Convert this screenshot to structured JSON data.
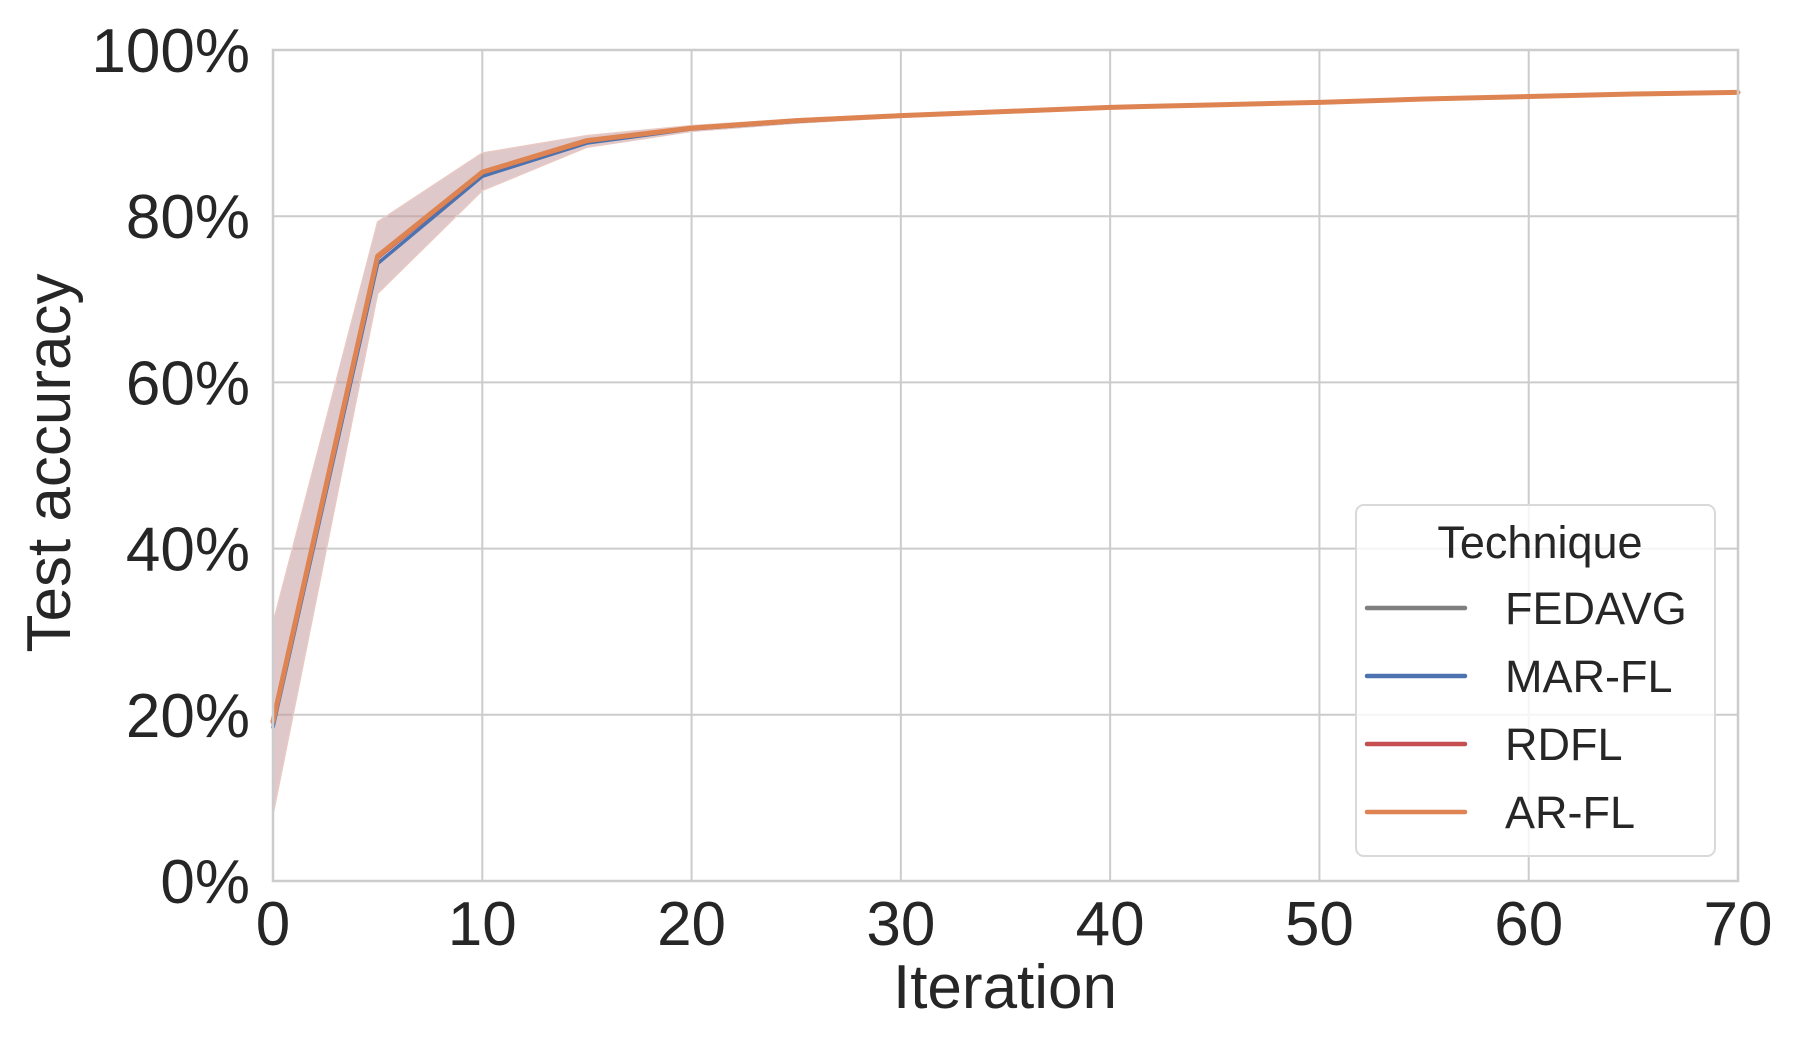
{
  "chart_data": {
    "type": "line",
    "title": "",
    "xlabel": "Iteration",
    "ylabel": "Test accuracy",
    "xlim": [
      0,
      70
    ],
    "ylim": [
      0,
      1.0
    ],
    "x_ticks": [
      0,
      10,
      20,
      30,
      40,
      50,
      60,
      70
    ],
    "x_tick_labels": [
      "0",
      "10",
      "20",
      "30",
      "40",
      "50",
      "60",
      "70"
    ],
    "y_ticks": [
      0,
      0.2,
      0.4,
      0.6,
      0.8,
      1.0
    ],
    "y_tick_labels": [
      "0%",
      "20%",
      "40%",
      "60%",
      "80%",
      "100%"
    ],
    "grid": true,
    "legend": {
      "title": "Technique",
      "position": "lower right"
    },
    "x": [
      0,
      5,
      10,
      15,
      20,
      25,
      30,
      35,
      40,
      45,
      50,
      55,
      60,
      65,
      70
    ],
    "series": [
      {
        "name": "FEDAVG",
        "color": "#7f7f7f",
        "values": [
          0.19,
          0.75,
          0.852,
          0.89,
          0.906,
          0.915,
          0.921,
          0.926,
          0.931,
          0.934,
          0.937,
          0.941,
          0.944,
          0.947,
          0.949
        ]
      },
      {
        "name": "MAR-FL",
        "color": "#4c72b0",
        "values": [
          0.185,
          0.743,
          0.848,
          0.888,
          0.905,
          0.914,
          0.921,
          0.926,
          0.931,
          0.934,
          0.937,
          0.941,
          0.944,
          0.947,
          0.949
        ]
      },
      {
        "name": "RDFL",
        "color": "#c44e52",
        "values": [
          0.19,
          0.75,
          0.852,
          0.89,
          0.906,
          0.915,
          0.921,
          0.926,
          0.931,
          0.934,
          0.937,
          0.941,
          0.944,
          0.947,
          0.949
        ]
      },
      {
        "name": "AR-FL",
        "color": "#dd8452",
        "values": [
          0.192,
          0.752,
          0.853,
          0.891,
          0.906,
          0.915,
          0.921,
          0.926,
          0.931,
          0.934,
          0.937,
          0.941,
          0.944,
          0.947,
          0.949
        ]
      }
    ],
    "confidence_band": {
      "color": "#c49a9c",
      "x": [
        0,
        5,
        10,
        15,
        20,
        25,
        30,
        35,
        40,
        45,
        50,
        55,
        60,
        65,
        70
      ],
      "upper": [
        0.31,
        0.793,
        0.876,
        0.897,
        0.909,
        0.917,
        0.923,
        0.928,
        0.932,
        0.935,
        0.938,
        0.942,
        0.945,
        0.948,
        0.95
      ],
      "lower": [
        0.08,
        0.707,
        0.831,
        0.883,
        0.902,
        0.912,
        0.919,
        0.924,
        0.929,
        0.933,
        0.936,
        0.94,
        0.943,
        0.946,
        0.948
      ]
    }
  },
  "axes": {
    "xlabel": "Iteration",
    "ylabel": "Test accuracy"
  },
  "legend": {
    "title": "Technique",
    "items": [
      {
        "label": "FEDAVG",
        "color": "#7f7f7f"
      },
      {
        "label": "MAR-FL",
        "color": "#4c72b0"
      },
      {
        "label": "RDFL",
        "color": "#c44e52"
      },
      {
        "label": "AR-FL",
        "color": "#dd8452"
      }
    ]
  },
  "style": {
    "grid_color": "#cccccc",
    "spine_color": "#cccccc",
    "text_color": "#262626",
    "legend_border": "#d9d9d9"
  }
}
